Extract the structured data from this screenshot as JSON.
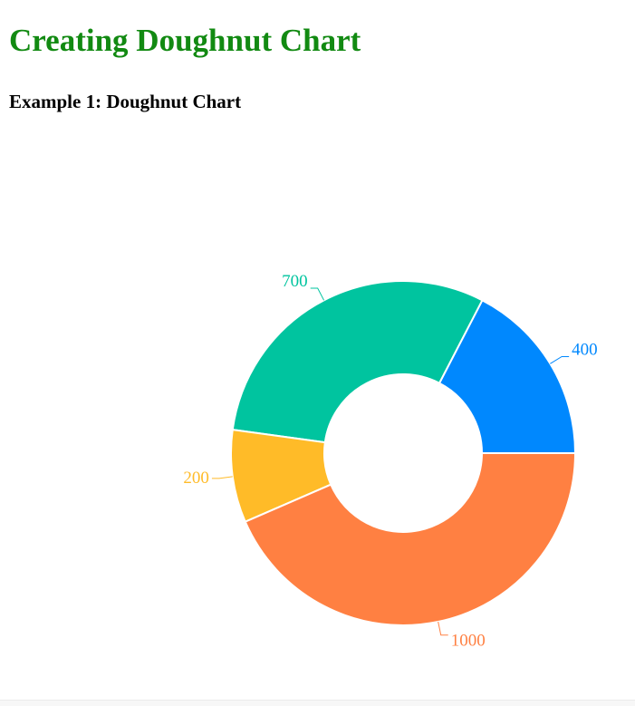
{
  "page": {
    "title": "Creating Doughnut Chart",
    "title_color": "#128a12",
    "subtitle": "Example 1: Doughnut Chart"
  },
  "chart_data": {
    "type": "pie",
    "subtype": "doughnut",
    "title": "",
    "legend": "none",
    "labels_shown": true,
    "label_style": "outside-with-leader-line",
    "start_angle_deg": 0,
    "direction": "counterclockwise",
    "total": 2300,
    "segments": [
      {
        "label": "400",
        "value": 400,
        "color": "#0088FE"
      },
      {
        "label": "700",
        "value": 700,
        "color": "#00C49F"
      },
      {
        "label": "200",
        "value": 200,
        "color": "#FFBB28"
      },
      {
        "label": "1000",
        "value": 1000,
        "color": "#FF8042"
      }
    ],
    "separator_color": "#ffffff"
  }
}
